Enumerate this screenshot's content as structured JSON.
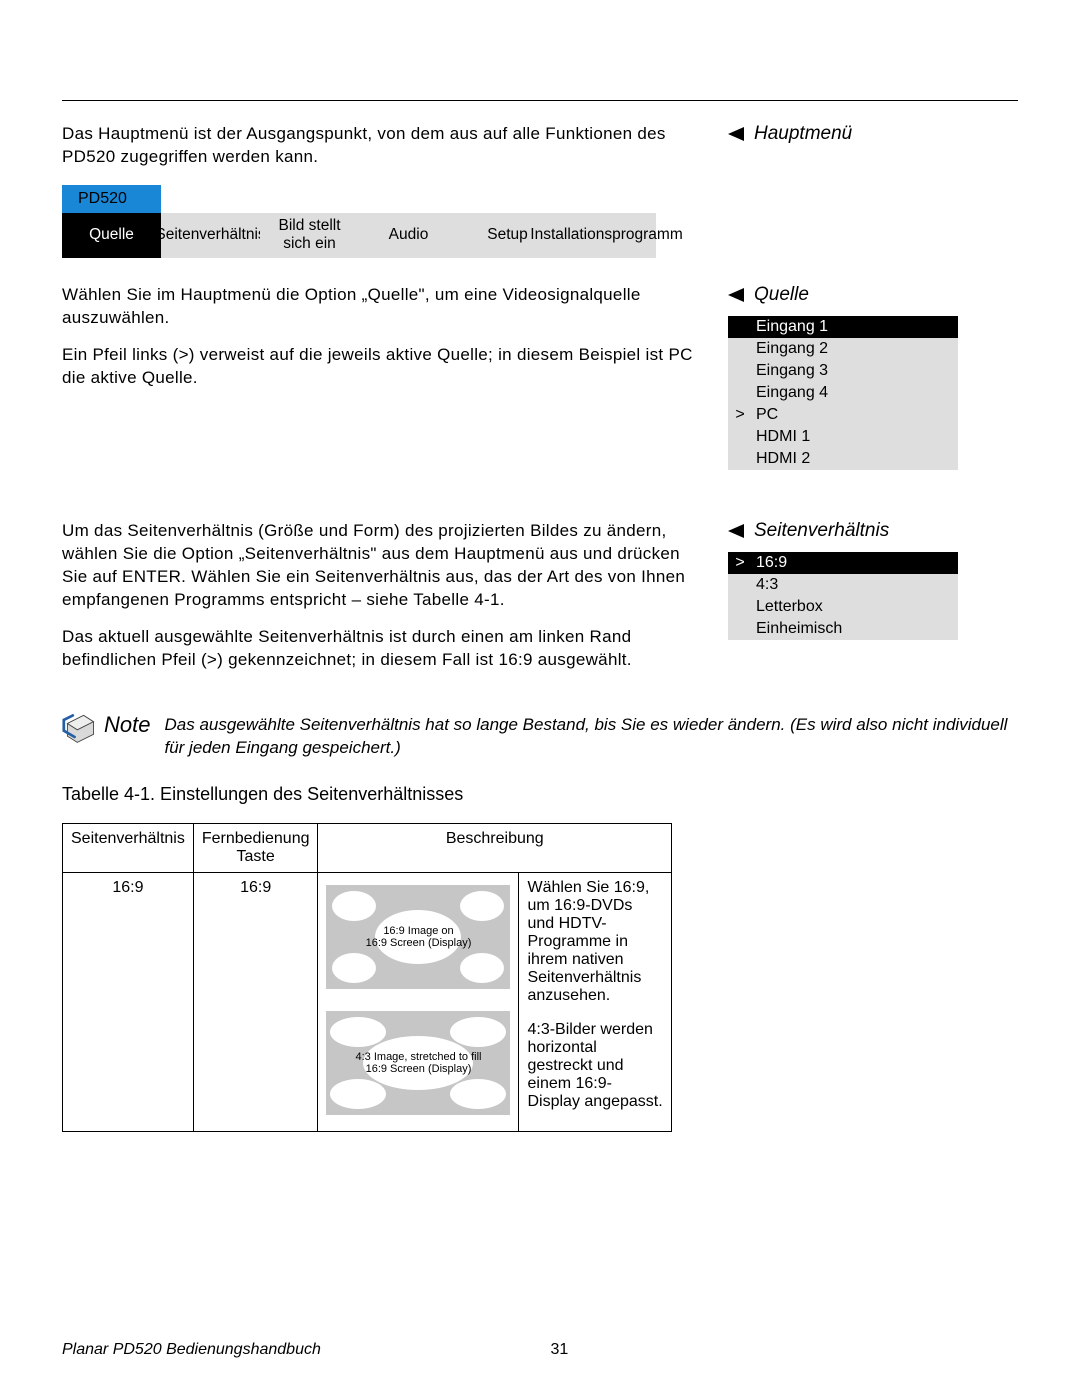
{
  "colors": {
    "accent_blue": "#1a87d6",
    "menu_grey": "#dedede",
    "diagram_grey": "#c6c6c6",
    "black": "#000000",
    "white": "#ffffff"
  },
  "intro_paragraph": "Das Hauptmenü ist der Ausgangspunkt, von dem aus auf alle Funktionen des PD520 zugegriffen werden kann.",
  "side_headings": {
    "hauptmenu": "Hauptmenü",
    "quelle": "Quelle",
    "seitenverhaltnis": "Seitenverhältnis"
  },
  "menubar": {
    "title": "PD520",
    "items": [
      {
        "label": "Quelle",
        "style": "black"
      },
      {
        "label": "Seitenverhältnis",
        "style": "grey"
      },
      {
        "label": "Bild stellt sich ein",
        "style": "grey"
      },
      {
        "label": "Audio",
        "style": "grey"
      },
      {
        "label": "Setup",
        "style": "grey"
      },
      {
        "label": "Installationsprogramm",
        "style": "grey"
      }
    ]
  },
  "quelle_paragraph_1": "Wählen Sie im Hauptmenü die Option „Quelle\", um eine Videosignalquelle auszuwählen.",
  "quelle_paragraph_2": "Ein Pfeil links (>) verweist auf die jeweils aktive Quelle; in diesem Beispiel ist PC die aktive Quelle.",
  "quelle_list": {
    "items": [
      {
        "label": "Eingang 1",
        "selected": true,
        "active": false
      },
      {
        "label": "Eingang 2",
        "selected": false,
        "active": false
      },
      {
        "label": "Eingang 3",
        "selected": false,
        "active": false
      },
      {
        "label": "Eingang 4",
        "selected": false,
        "active": false
      },
      {
        "label": "PC",
        "selected": false,
        "active": true
      },
      {
        "label": "HDMI 1",
        "selected": false,
        "active": false
      },
      {
        "label": "HDMI 2",
        "selected": false,
        "active": false
      }
    ]
  },
  "sv_paragraph_1": "Um das Seitenverhältnis (Größe und Form) des projizierten Bildes zu ändern, wählen Sie die Option „Seitenverhältnis\" aus dem Hauptmenü aus und drücken Sie auf ENTER. Wählen Sie ein Seitenverhältnis aus, das der Art des von Ihnen empfangenen Programms entspricht – siehe Tabelle 4-1.",
  "sv_paragraph_2": "Das aktuell ausgewählte Seitenverhältnis ist durch einen am linken Rand befindlichen Pfeil (>) gekennzeichnet; in diesem Fall ist 16:9 ausgewählt.",
  "sv_list": {
    "items": [
      {
        "label": "16:9",
        "selected": true,
        "active": true
      },
      {
        "label": "4:3",
        "selected": false,
        "active": false
      },
      {
        "label": "Letterbox",
        "selected": false,
        "active": false
      },
      {
        "label": "Einheimisch",
        "selected": false,
        "active": false
      }
    ]
  },
  "note": {
    "label": "Note",
    "text": "Das ausgewählte Seitenverhältnis hat so lange Bestand, bis Sie es wieder ändern. (Es wird also nicht individuell für jeden Eingang gespeichert.)"
  },
  "table": {
    "caption": "Tabelle 4-1. Einstellungen des Seitenverhältnisses",
    "columns": [
      "Seitenverhältnis",
      "Fernbedienung Taste",
      "Beschreibung"
    ],
    "row": {
      "aspect": "16:9",
      "button": "16:9",
      "diagram1_caption_l1": "16:9 Image on",
      "diagram1_caption_l2": "16:9 Screen (Display)",
      "desc1": "Wählen Sie 16:9, um 16:9-DVDs und HDTV-Programme in ihrem nativen Seitenverhältnis anzusehen.",
      "diagram2_caption_l1": "4:3 Image, stretched to fill",
      "diagram2_caption_l2": "16:9 Screen (Display)",
      "desc2": "4:3-Bilder werden horizontal gestreckt und einem 16:9-Display angepasst."
    }
  },
  "footer": {
    "book": "Planar PD520 Bedienungshandbuch",
    "page": "31"
  }
}
